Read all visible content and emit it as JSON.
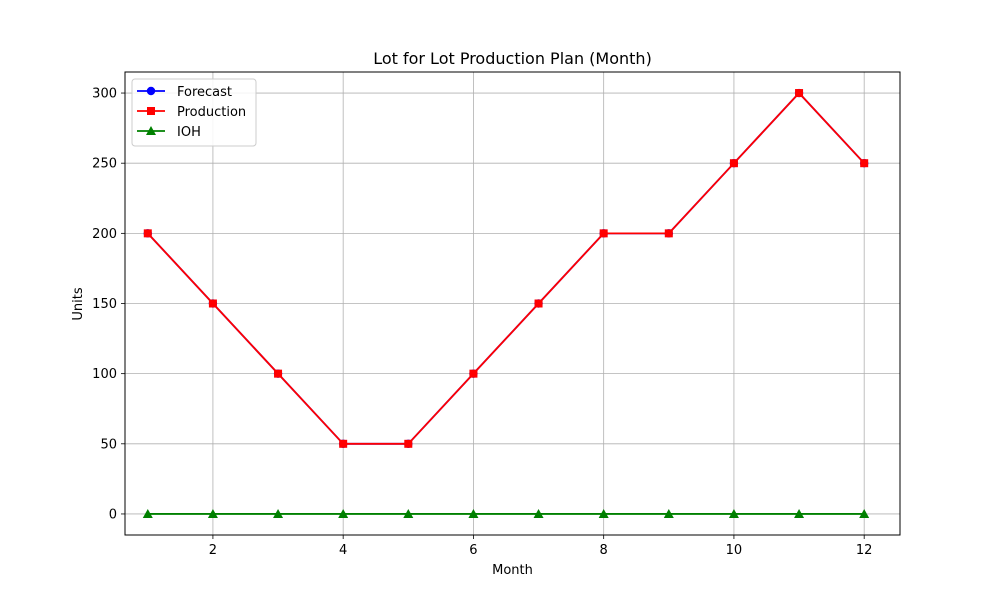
{
  "chart_data": {
    "type": "line",
    "title": "Lot for Lot Production Plan (Month)",
    "xlabel": "Month",
    "ylabel": "Units",
    "x": [
      1,
      2,
      3,
      4,
      5,
      6,
      7,
      8,
      9,
      10,
      11,
      12
    ],
    "xlim": [
      0.65,
      12.55
    ],
    "ylim": [
      -15,
      315
    ],
    "xticks": [
      2,
      4,
      6,
      8,
      10,
      12
    ],
    "yticks": [
      0,
      50,
      100,
      150,
      200,
      250,
      300
    ],
    "grid": true,
    "legend_position": "top-left",
    "series": [
      {
        "name": "Forecast",
        "color": "#0000ff",
        "marker": "circle",
        "values": [
          200,
          150,
          100,
          50,
          50,
          100,
          150,
          200,
          200,
          250,
          300,
          250
        ]
      },
      {
        "name": "Production",
        "color": "#ff0000",
        "marker": "square",
        "values": [
          200,
          150,
          100,
          50,
          50,
          100,
          150,
          200,
          200,
          250,
          300,
          250
        ]
      },
      {
        "name": "IOH",
        "color": "#008000",
        "marker": "triangle",
        "values": [
          0,
          0,
          0,
          0,
          0,
          0,
          0,
          0,
          0,
          0,
          0,
          0
        ]
      }
    ]
  }
}
